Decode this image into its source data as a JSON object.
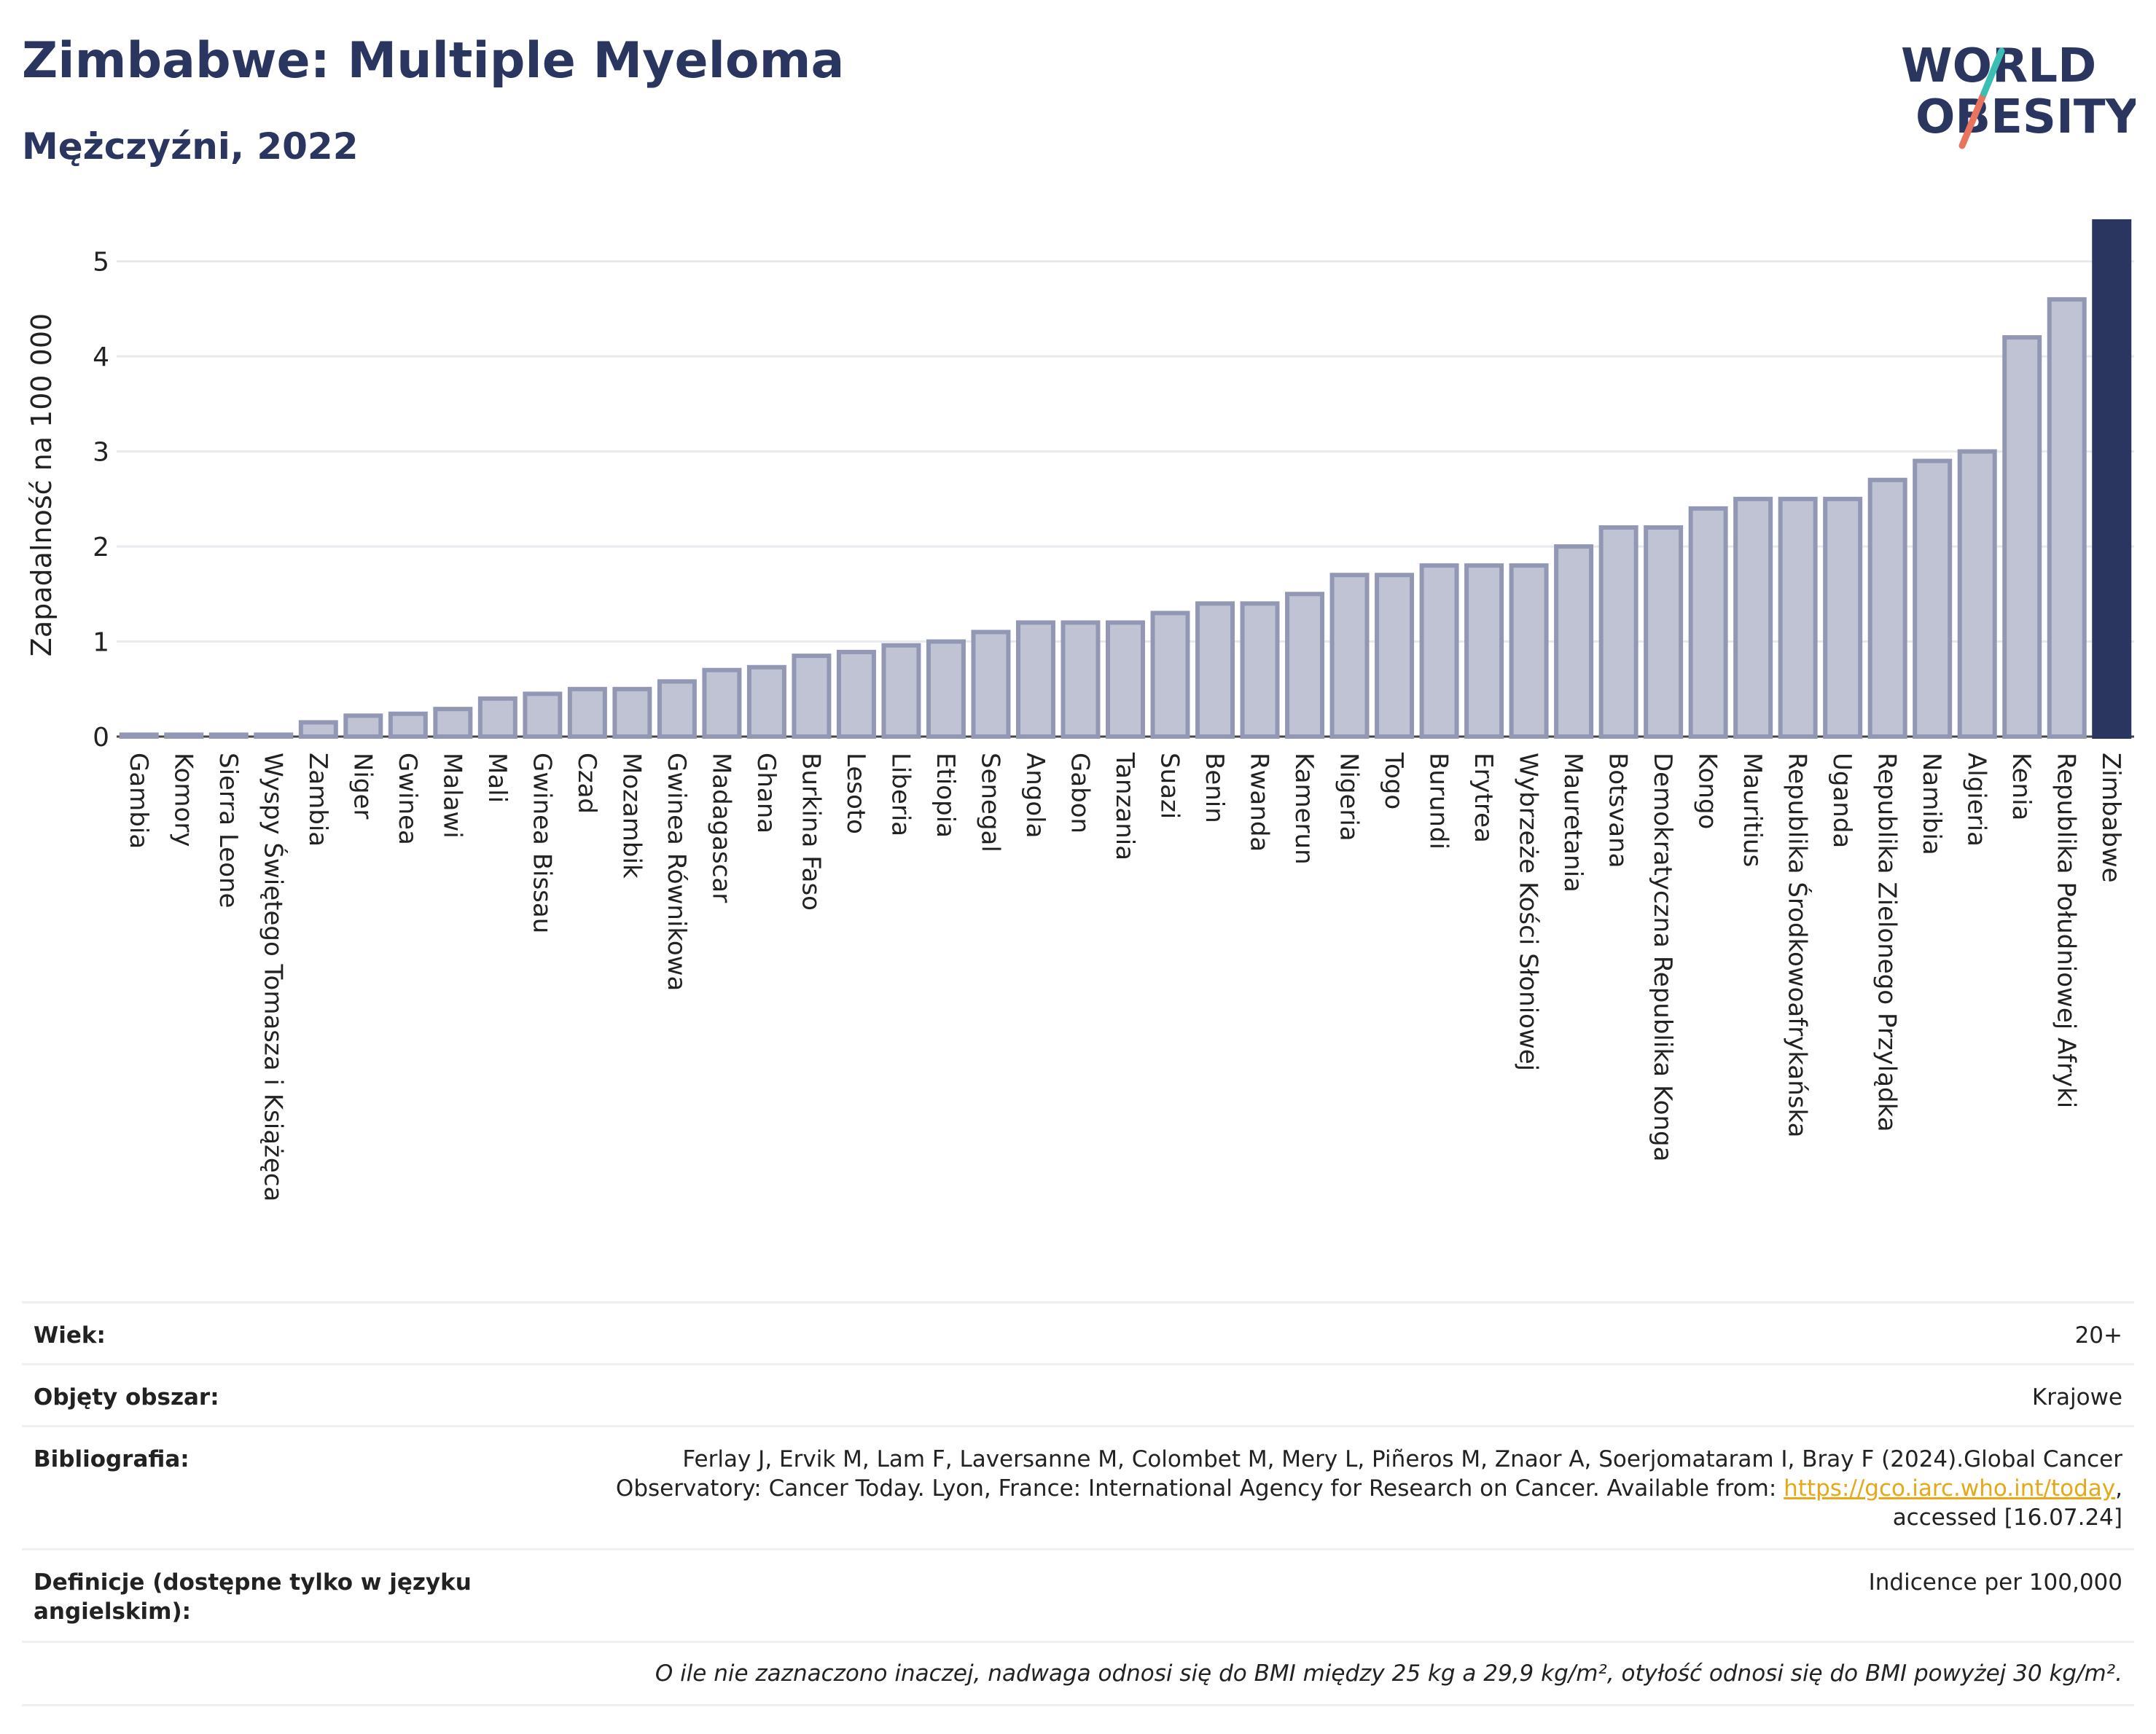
{
  "header": {
    "title": "Zimbabwe: Multiple Myeloma",
    "subtitle": "Mężczyźni, 2022"
  },
  "logo": {
    "line1": "WORLD",
    "line2": "OBESITY"
  },
  "chart_data": {
    "type": "bar",
    "ylabel": "Zapadalność na 100 000",
    "ylim": [
      0,
      5.45
    ],
    "yticks": [
      0,
      1,
      2,
      3,
      4,
      5
    ],
    "grid": true,
    "highlight": "Zimbabwe",
    "colors": {
      "bar": "#bfc3d3",
      "bar_edge": "#9298b4",
      "highlight": "#2a3560"
    },
    "categories": [
      "Gambia",
      "Komory",
      "Sierra Leone",
      "Wyspy Świętego Tomasza i Książęca",
      "Zambia",
      "Niger",
      "Gwinea",
      "Malawi",
      "Mali",
      "Gwinea Bissau",
      "Czad",
      "Mozambik",
      "Gwinea Równikowa",
      "Madagascar",
      "Ghana",
      "Burkina Faso",
      "Lesoto",
      "Liberia",
      "Etiopia",
      "Senegal",
      "Angola",
      "Gabon",
      "Tanzania",
      "Suazi",
      "Benin",
      "Rwanda",
      "Kamerun",
      "Nigeria",
      "Togo",
      "Burundi",
      "Erytrea",
      "Wybrzeże Kości Słoniowej",
      "Mauretania",
      "Botsvana",
      "Demokratyczna Republika Konga",
      "Kongo",
      "Mauritius",
      "Republika Środkowoafrykańska",
      "Uganda",
      "Republika Zielonego Przylądka",
      "Namibia",
      "Algieria",
      "Kenia",
      "Republika Południowej Afryki",
      "Zimbabwe"
    ],
    "values": [
      0.02,
      0.02,
      0.02,
      0.02,
      0.15,
      0.22,
      0.24,
      0.29,
      0.4,
      0.45,
      0.5,
      0.5,
      0.58,
      0.7,
      0.73,
      0.85,
      0.89,
      0.96,
      1.0,
      1.1,
      1.2,
      1.2,
      1.2,
      1.3,
      1.4,
      1.4,
      1.5,
      1.7,
      1.7,
      1.8,
      1.8,
      1.8,
      2.0,
      2.2,
      2.2,
      2.4,
      2.5,
      2.5,
      2.5,
      2.7,
      2.9,
      3.0,
      4.2,
      4.6,
      5.42
    ]
  },
  "info": {
    "age_label": "Wiek:",
    "age_value": "20+",
    "area_label": "Objęty obszar:",
    "area_value": "Krajowe",
    "bib_label": "Bibliografia:",
    "bib_line1": "Ferlay J, Ervik M, Lam F, Laversanne M, Colombet M, Mery L, Piñeros M, Znaor A, Soerjomataram I, Bray F (2024).Global Cancer",
    "bib_line2": "Observatory: Cancer Today. Lyon, France: International Agency for Research on Cancer. Available from: ",
    "bib_link": "https://gco.iarc.who.int/today",
    "bib_line2_end": ",",
    "bib_line3": "accessed [16.07.24]",
    "def_label": "Definicje (dostępne tylko w języku angielskim):",
    "def_value": "Indicence per 100,000",
    "note": "O ile nie zaznaczono inaczej, nadwaga odnosi się do BMI między 25 kg a 29,9 kg/m², otyłość odnosi się do BMI powyżej 30 kg/m²."
  }
}
